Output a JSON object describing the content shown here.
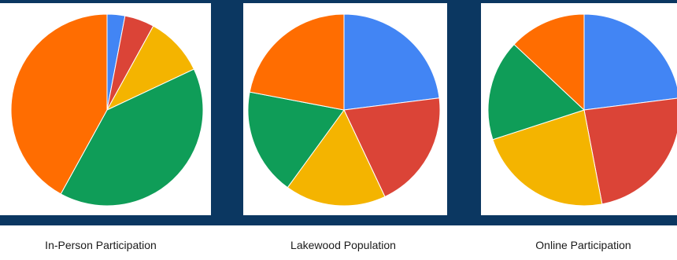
{
  "colors": {
    "blue": "#4285f4",
    "red": "#db4437",
    "yellow": "#f4b400",
    "green": "#0f9d58",
    "orange": "#ff6d01",
    "background": "#0b3761"
  },
  "chart_data": [
    {
      "type": "pie",
      "caption": "In-Person Participation",
      "start_angle_deg": 0,
      "slices": [
        {
          "value": 3,
          "color": "#4285f4"
        },
        {
          "value": 5,
          "color": "#db4437"
        },
        {
          "value": 10,
          "color": "#f4b400"
        },
        {
          "value": 40,
          "color": "#0f9d58"
        },
        {
          "value": 42,
          "color": "#ff6d01"
        }
      ]
    },
    {
      "type": "pie",
      "caption": "Lakewood Population",
      "start_angle_deg": 0,
      "slices": [
        {
          "value": 23,
          "color": "#4285f4"
        },
        {
          "value": 20,
          "color": "#db4437"
        },
        {
          "value": 17,
          "color": "#f4b400"
        },
        {
          "value": 18,
          "color": "#0f9d58"
        },
        {
          "value": 22,
          "color": "#ff6d01"
        }
      ]
    },
    {
      "type": "pie",
      "caption": "Online Participation",
      "start_angle_deg": 0,
      "slices": [
        {
          "value": 23,
          "color": "#4285f4"
        },
        {
          "value": 24,
          "color": "#db4437"
        },
        {
          "value": 23,
          "color": "#f4b400"
        },
        {
          "value": 17,
          "color": "#0f9d58"
        },
        {
          "value": 13,
          "color": "#ff6d01"
        }
      ]
    }
  ]
}
